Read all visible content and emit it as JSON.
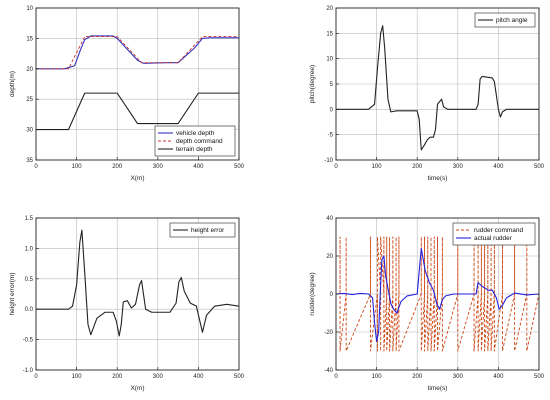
{
  "chart_data": [
    {
      "type": "line",
      "xlabel": "X(m)",
      "ylabel": "depth(m)",
      "xlim": [
        0,
        500
      ],
      "ylim": [
        10,
        35
      ],
      "y_inverted": true,
      "xticks": [
        0,
        100,
        200,
        300,
        400,
        500
      ],
      "yticks": [
        10,
        15,
        20,
        25,
        30,
        35
      ],
      "grid": true,
      "legend_position": "bottom-right",
      "series": [
        {
          "name": "vehicle depth",
          "color": "#3333bb",
          "dash": "solid",
          "x": [
            0,
            70,
            95,
            110,
            120,
            135,
            190,
            200,
            250,
            265,
            320,
            350,
            390,
            410,
            425,
            500
          ],
          "y": [
            20,
            20,
            19.5,
            16.8,
            15.2,
            14.6,
            14.6,
            15.0,
            18.6,
            19.1,
            19.0,
            19.0,
            16.6,
            15.0,
            14.9,
            14.9
          ]
        },
        {
          "name": "depth command",
          "color": "#cc3333",
          "dash": "dashed",
          "x": [
            0,
            80,
            120,
            200,
            260,
            350,
            410,
            500
          ],
          "y": [
            20,
            20,
            14.7,
            14.7,
            19.0,
            19.0,
            14.7,
            14.7
          ]
        },
        {
          "name": "terrain depth",
          "color": "#222222",
          "dash": "solid",
          "x": [
            0,
            80,
            120,
            200,
            250,
            350,
            400,
            500
          ],
          "y": [
            30,
            30,
            24,
            24,
            29,
            29,
            24,
            24
          ]
        }
      ]
    },
    {
      "type": "line",
      "xlabel": "time(s)",
      "ylabel": "pitch(degree)",
      "xlim": [
        0,
        500
      ],
      "ylim": [
        -10,
        20
      ],
      "xticks": [
        0,
        100,
        200,
        300,
        400,
        500
      ],
      "yticks": [
        -10,
        -5,
        0,
        5,
        10,
        15,
        20
      ],
      "grid": true,
      "legend_position": "top-right",
      "series": [
        {
          "name": "pitch angle",
          "color": "#222222",
          "dash": "solid",
          "x": [
            0,
            80,
            95,
            102,
            110,
            115,
            120,
            128,
            135,
            150,
            200,
            205,
            210,
            218,
            225,
            232,
            240,
            245,
            250,
            260,
            265,
            275,
            300,
            345,
            350,
            355,
            360,
            385,
            390,
            400,
            405,
            410,
            420,
            500
          ],
          "y": [
            0,
            0,
            1,
            8,
            15,
            16.5,
            12,
            2,
            -0.5,
            -0.3,
            -0.3,
            -2,
            -8,
            -7,
            -6,
            -5.5,
            -5.5,
            -4,
            1,
            2,
            0.5,
            0,
            0,
            0,
            1,
            6,
            6.5,
            6.2,
            5.5,
            0,
            -1.5,
            -0.5,
            0,
            0
          ]
        }
      ]
    },
    {
      "type": "line",
      "xlabel": "X(m)",
      "ylabel": "height error(m)",
      "xlim": [
        0,
        500
      ],
      "ylim": [
        -1.0,
        1.5
      ],
      "xticks": [
        0,
        100,
        200,
        300,
        400,
        500
      ],
      "yticks": [
        -1.0,
        -0.5,
        0.0,
        0.5,
        1.0,
        1.5
      ],
      "grid": true,
      "legend_position": "top-right",
      "series": [
        {
          "name": "height error",
          "color": "#222222",
          "dash": "solid",
          "x": [
            0,
            80,
            90,
            100,
            108,
            113,
            120,
            128,
            135,
            150,
            170,
            190,
            198,
            205,
            210,
            215,
            225,
            235,
            245,
            255,
            260,
            270,
            285,
            305,
            330,
            345,
            352,
            358,
            365,
            380,
            395,
            402,
            410,
            420,
            440,
            470,
            500
          ],
          "y": [
            0,
            0,
            0.05,
            0.4,
            1.1,
            1.3,
            0.6,
            -0.25,
            -0.42,
            -0.15,
            -0.05,
            -0.05,
            -0.2,
            -0.44,
            -0.25,
            0.12,
            0.14,
            0.02,
            0.08,
            0.4,
            0.47,
            0.0,
            -0.05,
            -0.05,
            -0.05,
            0.1,
            0.45,
            0.52,
            0.3,
            0.1,
            0.05,
            -0.15,
            -0.38,
            -0.1,
            0.05,
            0.08,
            0.05
          ]
        }
      ]
    },
    {
      "type": "line",
      "xlabel": "time(s)",
      "ylabel": "rudder(degree)",
      "xlim": [
        0,
        500
      ],
      "ylim": [
        -40,
        40
      ],
      "xticks": [
        0,
        100,
        200,
        300,
        400,
        500
      ],
      "yticks": [
        -40,
        -20,
        0,
        20,
        40
      ],
      "grid": true,
      "legend_position": "top-right",
      "series": [
        {
          "name": "rudder command",
          "color": "#cc4411",
          "dash": "dashed",
          "x": [
            0,
            10,
            10,
            10,
            25,
            25,
            25,
            85,
            85,
            85,
            102,
            102,
            102,
            110,
            110,
            110,
            118,
            118,
            118,
            125,
            125,
            125,
            132,
            132,
            132,
            140,
            140,
            140,
            148,
            148,
            148,
            155,
            155,
            155,
            210,
            210,
            210,
            218,
            218,
            218,
            226,
            226,
            226,
            234,
            234,
            234,
            242,
            242,
            242,
            250,
            250,
            250,
            262,
            262,
            262,
            300,
            300,
            300,
            340,
            340,
            340,
            350,
            350,
            350,
            358,
            358,
            358,
            366,
            366,
            366,
            374,
            374,
            374,
            382,
            382,
            382,
            390,
            390,
            390,
            410,
            410,
            410,
            440,
            440,
            440,
            470,
            470,
            470,
            500
          ],
          "y": [
            0,
            0,
            30,
            -30,
            0,
            30,
            -30,
            0,
            30,
            -30,
            0,
            -30,
            30,
            0,
            -30,
            30,
            0,
            30,
            -30,
            0,
            30,
            -30,
            0,
            30,
            -30,
            0,
            30,
            -30,
            0,
            30,
            -30,
            0,
            30,
            -30,
            0,
            30,
            -30,
            0,
            30,
            -30,
            0,
            30,
            -30,
            0,
            30,
            -30,
            0,
            30,
            -30,
            0,
            30,
            -30,
            0,
            30,
            -30,
            0,
            30,
            -30,
            0,
            30,
            -30,
            0,
            30,
            -30,
            0,
            30,
            -30,
            0,
            30,
            -30,
            0,
            30,
            -30,
            0,
            30,
            -30,
            0,
            30,
            -30,
            0,
            30,
            -30,
            0,
            30,
            -30,
            0,
            30,
            -30,
            0
          ]
        },
        {
          "name": "actual rudder",
          "color": "#2222dd",
          "dash": "solid",
          "x": [
            0,
            20,
            40,
            60,
            80,
            90,
            95,
            100,
            105,
            110,
            113,
            118,
            122,
            128,
            135,
            142,
            150,
            160,
            175,
            200,
            205,
            210,
            215,
            220,
            230,
            240,
            248,
            255,
            262,
            270,
            290,
            320,
            345,
            350,
            355,
            360,
            368,
            375,
            385,
            395,
            402,
            410,
            420,
            440,
            470,
            500
          ],
          "y": [
            0,
            0.3,
            -0.3,
            0.3,
            0,
            -2,
            -15,
            -25,
            -20,
            5,
            18,
            20,
            10,
            3,
            -5,
            -8,
            -10,
            -4,
            -1,
            0,
            12,
            24,
            18,
            12,
            6,
            2,
            -5,
            -8,
            -3,
            -1,
            0,
            0,
            0,
            6,
            5,
            4,
            3,
            2,
            2,
            -2,
            -8,
            -6,
            -2,
            0.5,
            -0.5,
            0
          ]
        }
      ]
    }
  ]
}
